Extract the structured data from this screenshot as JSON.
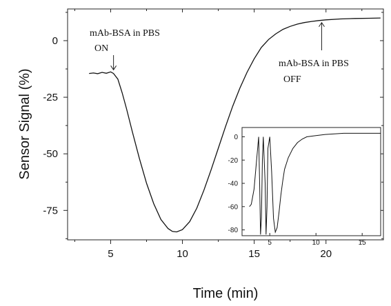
{
  "chart_data": [
    {
      "type": "line",
      "xlabel": "Time (min)",
      "ylabel": "Sensor Signal (%)",
      "xlim": [
        2.0,
        24.0
      ],
      "ylim": [
        -88.0,
        14.0
      ],
      "x_ticks": [
        5,
        10,
        15,
        20
      ],
      "y_ticks": [
        0,
        -25,
        -50,
        -75
      ],
      "x_tick_labels": [
        "5",
        "10",
        "15",
        "20"
      ],
      "y_tick_labels": [
        "0",
        "-25",
        "-50",
        "-75"
      ],
      "x_minor_ticks": [
        2.5,
        7.5,
        12.5,
        17.5,
        22.5
      ],
      "y_minor_ticks": [
        12.5,
        -12.5,
        -37.5,
        -62.5,
        -87.5
      ],
      "series": [
        {
          "x": [
            3.5,
            3.8,
            4.1,
            4.4,
            4.7,
            5.0,
            5.2,
            5.5,
            5.8,
            6.1,
            6.5,
            7.0,
            7.5,
            8.0,
            8.5,
            9.0,
            9.3,
            9.6,
            10.0,
            10.5,
            11.0,
            11.5,
            12.0,
            12.5,
            13.0,
            13.5,
            14.0,
            14.5,
            15.0,
            15.5,
            16.0,
            16.5,
            17.0,
            17.5,
            18.0,
            18.5,
            19.0,
            19.5,
            20.0,
            21.0,
            22.0,
            23.0,
            23.8
          ],
          "y": [
            -14.5,
            -14.3,
            -14.6,
            -14.0,
            -14.4,
            -13.8,
            -14.5,
            -17.0,
            -23.0,
            -30.0,
            -40.0,
            -52.0,
            -63.0,
            -72.0,
            -79.0,
            -83.0,
            -84.3,
            -84.5,
            -83.5,
            -80.0,
            -74.0,
            -66.0,
            -57.0,
            -47.5,
            -38.0,
            -29.0,
            -21.0,
            -14.0,
            -8.0,
            -3.0,
            0.5,
            3.0,
            5.0,
            6.3,
            7.3,
            8.0,
            8.5,
            8.9,
            9.2,
            9.6,
            9.8,
            9.9,
            10.0
          ]
        }
      ],
      "annotations": [
        {
          "line1": "mAb-BSA in PBS",
          "line2": "ON",
          "x": 5.2,
          "y": -13.8
        },
        {
          "line1": "mAb-BSA in PBS",
          "line2": "OFF",
          "x": 19.7,
          "y": 8.9
        }
      ]
    },
    {
      "type": "line",
      "role": "inset",
      "xlim": [
        2.0,
        17.0
      ],
      "ylim": [
        -85.0,
        8.0
      ],
      "x_ticks": [
        5,
        10,
        15
      ],
      "y_ticks": [
        0,
        -20,
        -40,
        -60,
        -80
      ],
      "x_tick_labels": [
        "5",
        "10",
        "15"
      ],
      "y_tick_labels": [
        "0",
        "-20",
        "-40",
        "-60",
        "-80"
      ],
      "series": [
        {
          "x": [
            2.8,
            3.0,
            3.3,
            3.6,
            3.8,
            3.9,
            4.0,
            4.1,
            4.2,
            4.3,
            4.5,
            4.6,
            4.7,
            4.8,
            5.0,
            5.2,
            5.4,
            5.6,
            5.8,
            6.0,
            6.2,
            6.4,
            6.6,
            7.0,
            7.5,
            8.0,
            8.5,
            9.0,
            10.0,
            11.0,
            12.0,
            13.0,
            14.0,
            15.0,
            16.0,
            17.0
          ],
          "y": [
            -60,
            -58,
            -45,
            -18,
            0,
            -40,
            -84,
            -70,
            -20,
            0,
            -40,
            -84,
            -60,
            -10,
            0,
            -30,
            -70,
            -82,
            -78,
            -65,
            -50,
            -38,
            -28,
            -18,
            -10,
            -5,
            -2,
            0,
            1,
            2,
            2.5,
            3,
            3,
            3,
            3,
            3
          ]
        }
      ]
    }
  ]
}
